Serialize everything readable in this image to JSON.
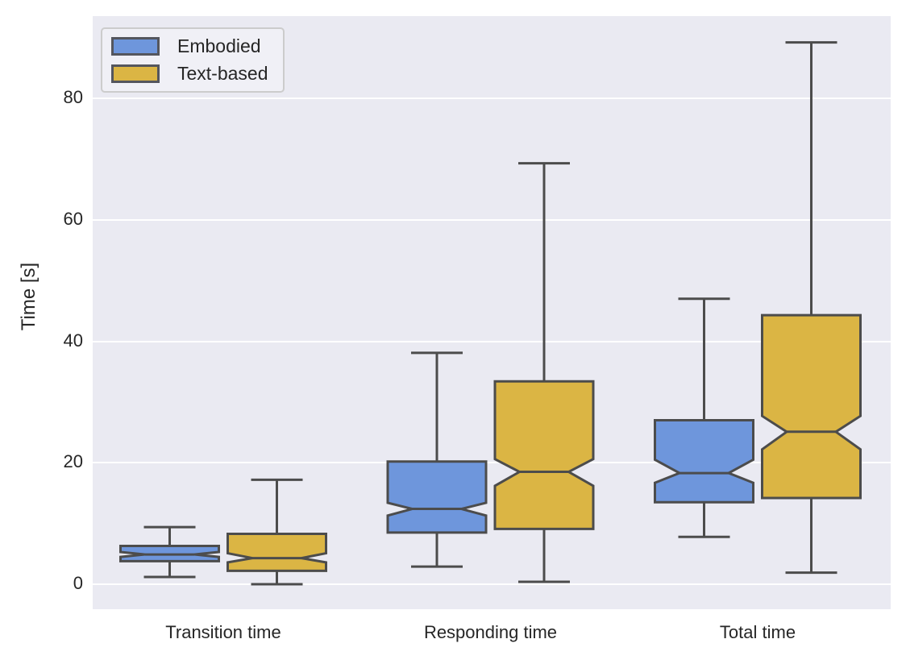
{
  "figure": {
    "ylabel": "Time [s]",
    "yticks": [
      0,
      20,
      40,
      60,
      80
    ]
  },
  "legend": {
    "items": [
      {
        "label": "Embodied",
        "color": "#6e96dc"
      },
      {
        "label": "Text-based",
        "color": "#dbb544"
      }
    ]
  },
  "colors": {
    "box_edge": "#4c4c4c",
    "plot_background": "#eaeaf2",
    "gridline": "#ffffff",
    "text": "#262626"
  },
  "chart_data": {
    "type": "boxplot",
    "title": "",
    "xlabel": "",
    "ylabel": "Time [s]",
    "ylim": [
      -4,
      93.5
    ],
    "grid": true,
    "legend_position": "upper-left",
    "categories": [
      "Transition time",
      "Responding time",
      "Total time"
    ],
    "series": [
      {
        "name": "Embodied",
        "color": "#6e96dc",
        "boxes": [
          {
            "category": "Transition time",
            "whisker_low": 1.2,
            "q1": 3.8,
            "median": 4.9,
            "q3": 6.3,
            "whisker_high": 9.4,
            "notch_low": 4.5,
            "notch_high": 5.3
          },
          {
            "category": "Responding time",
            "whisker_low": 2.9,
            "q1": 8.5,
            "median": 12.4,
            "q3": 20.2,
            "whisker_high": 38.1,
            "notch_low": 11.3,
            "notch_high": 13.4
          },
          {
            "category": "Total time",
            "whisker_low": 7.8,
            "q1": 13.5,
            "median": 18.3,
            "q3": 27.0,
            "whisker_high": 47.0,
            "notch_low": 16.7,
            "notch_high": 20.5
          }
        ]
      },
      {
        "name": "Text-based",
        "color": "#dbb544",
        "boxes": [
          {
            "category": "Transition time",
            "whisker_low": 0.0,
            "q1": 2.2,
            "median": 4.3,
            "q3": 8.3,
            "whisker_high": 17.2,
            "notch_low": 3.6,
            "notch_high": 5.1
          },
          {
            "category": "Responding time",
            "whisker_low": 0.4,
            "q1": 9.1,
            "median": 18.5,
            "q3": 33.4,
            "whisker_high": 69.3,
            "notch_low": 16.2,
            "notch_high": 20.6
          },
          {
            "category": "Total time",
            "whisker_low": 1.9,
            "q1": 14.2,
            "median": 25.1,
            "q3": 44.3,
            "whisker_high": 89.2,
            "notch_low": 22.2,
            "notch_high": 27.7
          }
        ]
      }
    ]
  }
}
